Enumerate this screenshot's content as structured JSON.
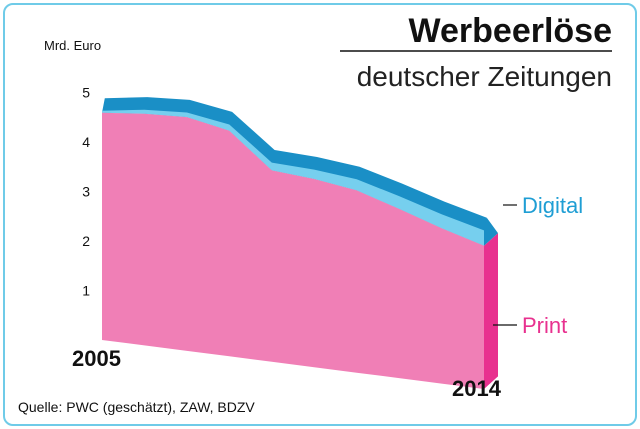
{
  "chart_data": {
    "type": "area",
    "title": "Werbeerlöse",
    "subtitle": "deutscher Zeitungen",
    "ylabel": "Mrd. Euro",
    "ylim": [
      0,
      5
    ],
    "yticks": [
      "1",
      "2",
      "3",
      "4",
      "5"
    ],
    "x_labels": {
      "start": "2005",
      "end": "2014"
    },
    "x": [
      2005,
      2006,
      2007,
      2008,
      2009,
      2010,
      2011,
      2012,
      2013,
      2014
    ],
    "series": [
      {
        "name": "Print",
        "color": "#f07fb6",
        "side_color": "#e8318f",
        "values": [
          4.59,
          4.63,
          4.62,
          4.41,
          3.7,
          3.6,
          3.45,
          3.17,
          2.88,
          2.63
        ]
      },
      {
        "name": "Digital",
        "color": "#1a8fc6",
        "light_color": "#76cfee",
        "legend_color": "#1f9ed4",
        "values": [
          0.04,
          0.08,
          0.09,
          0.12,
          0.15,
          0.18,
          0.21,
          0.24,
          0.26,
          0.28
        ]
      }
    ],
    "stacked": true
  },
  "source": "Quelle: PWC (geschätzt), ZAW, BDZV"
}
